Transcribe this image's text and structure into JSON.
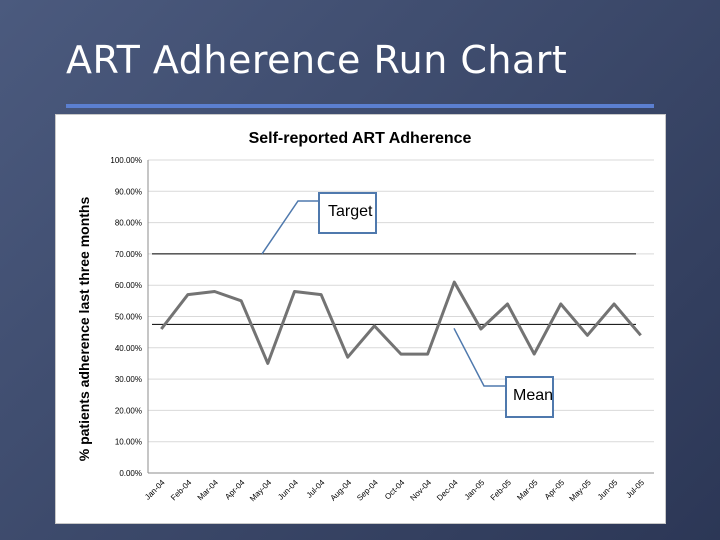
{
  "slide": {
    "title": "ART Adherence Run Chart"
  },
  "callouts": {
    "target_label": "Target",
    "mean_label": "Mean"
  },
  "colors": {
    "accent_rule": "#5b7fd0",
    "series_line": "#737373",
    "callout_border": "#4f79ad"
  },
  "chart_data": {
    "type": "line",
    "title": "Self-reported ART Adherence",
    "ylabel": "% patients adherence last three months",
    "xlabel": "",
    "ylim": [
      0,
      100
    ],
    "ytick_labels": [
      "0.00%",
      "10.00%",
      "20.00%",
      "30.00%",
      "40.00%",
      "50.00%",
      "60.00%",
      "70.00%",
      "80.00%",
      "90.00%",
      "100.00%"
    ],
    "categories": [
      "Jan-04",
      "Feb-04",
      "Mar-04",
      "Apr-04",
      "May-04",
      "Jun-04",
      "Jul-04",
      "Aug-04",
      "Sep-04",
      "Oct-04",
      "Nov-04",
      "Dec-04",
      "Jan-05",
      "Feb-05",
      "Mar-05",
      "Apr-05",
      "May-05",
      "Jun-05",
      "Jul-05"
    ],
    "series": [
      {
        "values": [
          46,
          57,
          58,
          55,
          35,
          58,
          57,
          37,
          47,
          38,
          38,
          61,
          46,
          54,
          38,
          54,
          44,
          54,
          44
        ]
      }
    ],
    "reference_lines": [
      {
        "label": "Target",
        "value": 70
      },
      {
        "label": "Mean",
        "value": 47.5
      }
    ],
    "grid": true,
    "legend": "none"
  }
}
